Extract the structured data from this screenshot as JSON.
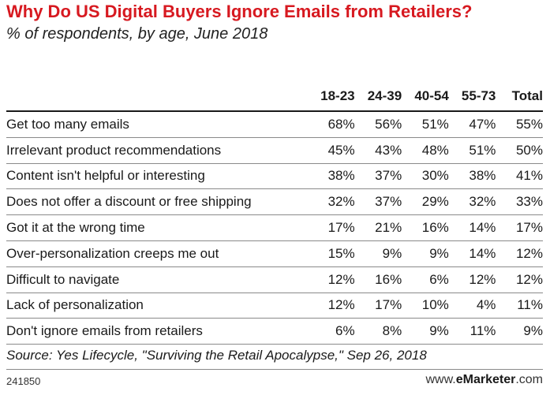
{
  "chart_data": {
    "type": "table",
    "title": "Why Do US Digital Buyers Ignore Emails from Retailers?",
    "subtitle": "% of respondents, by age, June 2018",
    "columns": [
      "18-23",
      "24-39",
      "40-54",
      "55-73",
      "Total"
    ],
    "rows": [
      {
        "label": "Get too many emails",
        "values": [
          "68%",
          "56%",
          "51%",
          "47%",
          "55%"
        ]
      },
      {
        "label": "Irrelevant product recommendations",
        "values": [
          "45%",
          "43%",
          "48%",
          "51%",
          "50%"
        ]
      },
      {
        "label": "Content isn't helpful or interesting",
        "values": [
          "38%",
          "37%",
          "30%",
          "38%",
          "41%"
        ]
      },
      {
        "label": "Does not offer a discount or free shipping",
        "values": [
          "32%",
          "37%",
          "29%",
          "32%",
          "33%"
        ]
      },
      {
        "label": "Got it at the wrong time",
        "values": [
          "17%",
          "21%",
          "16%",
          "14%",
          "17%"
        ]
      },
      {
        "label": "Over-personalization creeps me out",
        "values": [
          "15%",
          "9%",
          "9%",
          "14%",
          "12%"
        ]
      },
      {
        "label": "Difficult to navigate",
        "values": [
          "12%",
          "16%",
          "6%",
          "12%",
          "12%"
        ]
      },
      {
        "label": "Lack of personalization",
        "values": [
          "12%",
          "17%",
          "10%",
          "4%",
          "11%"
        ]
      },
      {
        "label": "Don't ignore emails from retailers",
        "values": [
          "6%",
          "8%",
          "9%",
          "11%",
          "9%"
        ]
      }
    ]
  },
  "source": "Source: Yes Lifecycle, \"Surviving the Retail Apocalypse,\" Sep 26, 2018",
  "footer": {
    "chart_id": "241850",
    "brand_prefix": "www.",
    "brand_bold": "eMarketer",
    "brand_suffix": ".com"
  },
  "colors": {
    "title": "#d71920",
    "text": "#1a1a1a",
    "rule": "#8a8a8a"
  }
}
